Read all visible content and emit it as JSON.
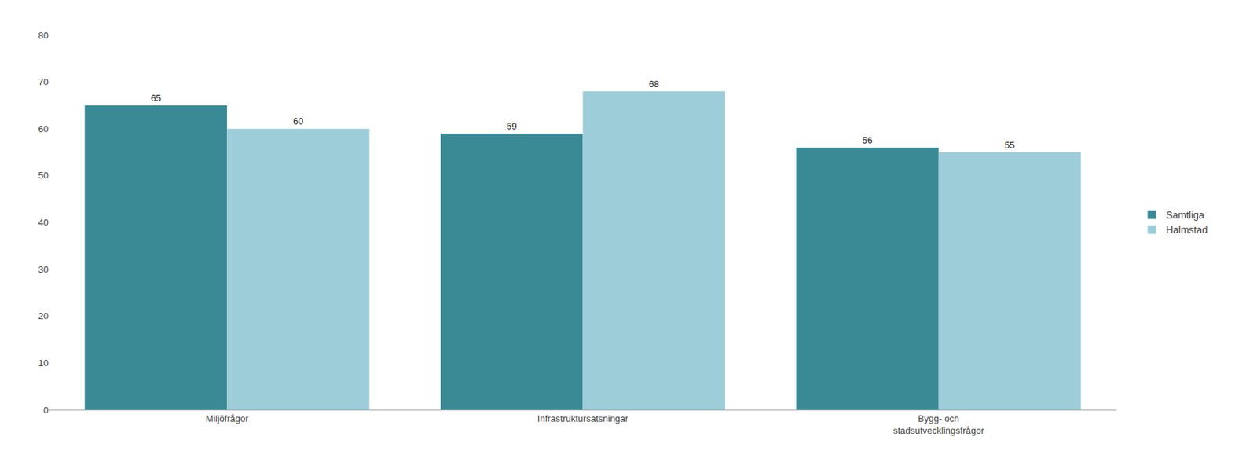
{
  "chart_data": {
    "type": "bar",
    "categories": [
      "Miljöfrågor",
      "Infrastruktursatsningar",
      "Bygg- och\nstadsutvecklingsfrågor"
    ],
    "series": [
      {
        "name": "Samtliga",
        "color": "#3a8a96",
        "values": [
          65,
          59,
          56
        ]
      },
      {
        "name": "Halmstad",
        "color": "#9dcdd8",
        "values": [
          60,
          68,
          55
        ]
      }
    ],
    "ylim": [
      0,
      80
    ],
    "yticks": [
      0,
      10,
      20,
      30,
      40,
      50,
      60,
      70,
      80
    ],
    "grid": false,
    "legend": "right",
    "data_labels": true
  }
}
